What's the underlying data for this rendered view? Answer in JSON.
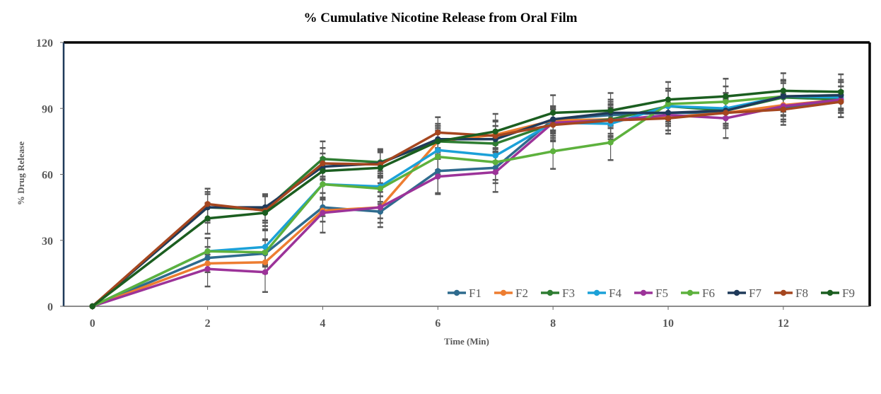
{
  "chart_data": {
    "type": "line",
    "title": "% Cumulative Nicotine Release from Oral Film",
    "xlabel": "Time (Min)",
    "ylabel": "% Drug Release",
    "xlim": [
      -0.5,
      13.5
    ],
    "ylim": [
      0,
      120
    ],
    "x_ticks": [
      0,
      2,
      4,
      6,
      8,
      10,
      12
    ],
    "y_ticks": [
      0,
      30,
      60,
      90,
      120
    ],
    "x": [
      0,
      2,
      3,
      4,
      5,
      6,
      7,
      8,
      9,
      10,
      11,
      12,
      13
    ],
    "grid": false,
    "legend_position": "bottom-right, inside plot",
    "error_bars": true,
    "series": [
      {
        "name": "F1",
        "color": "#2E6B8E",
        "values": [
          0,
          22,
          24,
          45,
          43,
          61.5,
          63,
          85,
          87,
          88,
          88,
          90,
          93
        ],
        "errors": [
          0,
          5,
          6,
          4,
          7,
          10,
          7,
          5,
          5,
          6,
          5,
          5,
          5
        ]
      },
      {
        "name": "F2",
        "color": "#ED7D31",
        "values": [
          0,
          19.5,
          20,
          43.5,
          45,
          75,
          78,
          84.5,
          85,
          86,
          88,
          91.5,
          94
        ],
        "errors": [
          0,
          4,
          5,
          5,
          5,
          6,
          6,
          5,
          4,
          6,
          6,
          5,
          6
        ]
      },
      {
        "name": "F3",
        "color": "#2E7D32",
        "values": [
          0,
          45,
          44,
          67,
          65.5,
          75,
          74,
          83,
          85,
          91,
          89,
          95,
          94
        ],
        "errors": [
          0,
          7,
          6,
          8,
          6,
          7,
          8,
          8,
          8,
          8,
          8,
          8,
          8
        ]
      },
      {
        "name": "F4",
        "color": "#1BA1D8",
        "values": [
          0,
          25,
          27,
          55.5,
          54.5,
          71,
          68.5,
          83.5,
          83,
          91,
          90,
          95.5,
          95
        ],
        "errors": [
          0,
          6,
          8,
          7,
          7,
          9,
          8,
          7,
          7,
          7,
          7,
          7,
          7
        ]
      },
      {
        "name": "F5",
        "color": "#9C3399",
        "values": [
          0,
          17,
          15.5,
          42.5,
          45,
          59,
          61,
          83.5,
          84.5,
          87,
          85.5,
          91,
          94
        ],
        "errors": [
          0,
          8,
          9,
          9,
          7,
          8,
          9,
          6,
          6,
          7,
          9,
          7,
          8
        ]
      },
      {
        "name": "F6",
        "color": "#5DB13D",
        "values": [
          0,
          25,
          24.5,
          55.5,
          53.5,
          68,
          65.5,
          70.5,
          74.5,
          92,
          93,
          95.5,
          96
        ],
        "errors": [
          0,
          6,
          6,
          6,
          7,
          8,
          8,
          8,
          8,
          7,
          7,
          7,
          7
        ]
      },
      {
        "name": "F7",
        "color": "#1F3A5A",
        "values": [
          0,
          45,
          45,
          63.5,
          65,
          76,
          76,
          85,
          88,
          88,
          89,
          95.5,
          96
        ],
        "errors": [
          0,
          6,
          6,
          6,
          6,
          6,
          6,
          6,
          6,
          6,
          6,
          6,
          6
        ]
      },
      {
        "name": "F8",
        "color": "#A5461F",
        "values": [
          0,
          46.5,
          43.5,
          65,
          64.5,
          79,
          77.5,
          82.5,
          84.5,
          85.5,
          88,
          89.5,
          93
        ],
        "errors": [
          0,
          7,
          7,
          7,
          6,
          7,
          7,
          7,
          7,
          7,
          7,
          7,
          7
        ]
      },
      {
        "name": "F9",
        "color": "#1B5E20",
        "values": [
          0,
          40,
          42.5,
          61.5,
          63,
          75,
          79.5,
          88,
          89,
          94,
          95.5,
          98,
          97.5
        ],
        "errors": [
          0,
          7,
          8,
          6,
          7,
          8,
          8,
          8,
          8,
          8,
          8,
          8,
          8
        ]
      }
    ]
  }
}
